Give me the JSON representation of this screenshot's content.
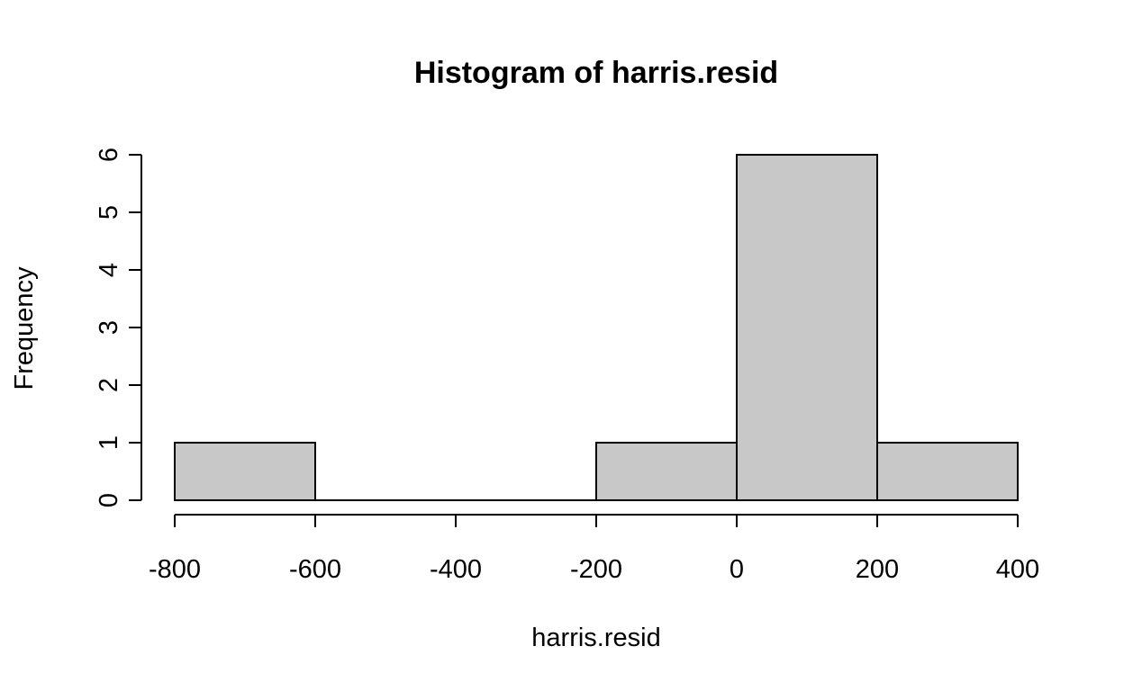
{
  "chart_data": {
    "type": "bar",
    "title": "Histogram of harris.resid",
    "xlabel": "harris.resid",
    "ylabel": "Frequency",
    "bins": [
      {
        "from": -800,
        "to": -600,
        "count": 1
      },
      {
        "from": -600,
        "to": -400,
        "count": 0
      },
      {
        "from": -400,
        "to": -200,
        "count": 0
      },
      {
        "from": -200,
        "to": 0,
        "count": 1
      },
      {
        "from": 0,
        "to": 200,
        "count": 6
      },
      {
        "from": 200,
        "to": 400,
        "count": 1
      }
    ],
    "xlim": [
      -800,
      400
    ],
    "ylim": [
      0,
      6
    ],
    "x_ticks": [
      -800,
      -600,
      -400,
      -200,
      0,
      200,
      400
    ],
    "x_tick_labels": [
      "-800",
      "-600",
      "-400",
      "-200",
      "0",
      "200",
      "400"
    ],
    "y_ticks": [
      0,
      1,
      2,
      3,
      4,
      5,
      6
    ],
    "y_tick_labels": [
      "0",
      "1",
      "2",
      "3",
      "4",
      "5",
      "6"
    ],
    "grid": false,
    "bar_color": "#c8c8c8",
    "edge_color": "#000000"
  }
}
